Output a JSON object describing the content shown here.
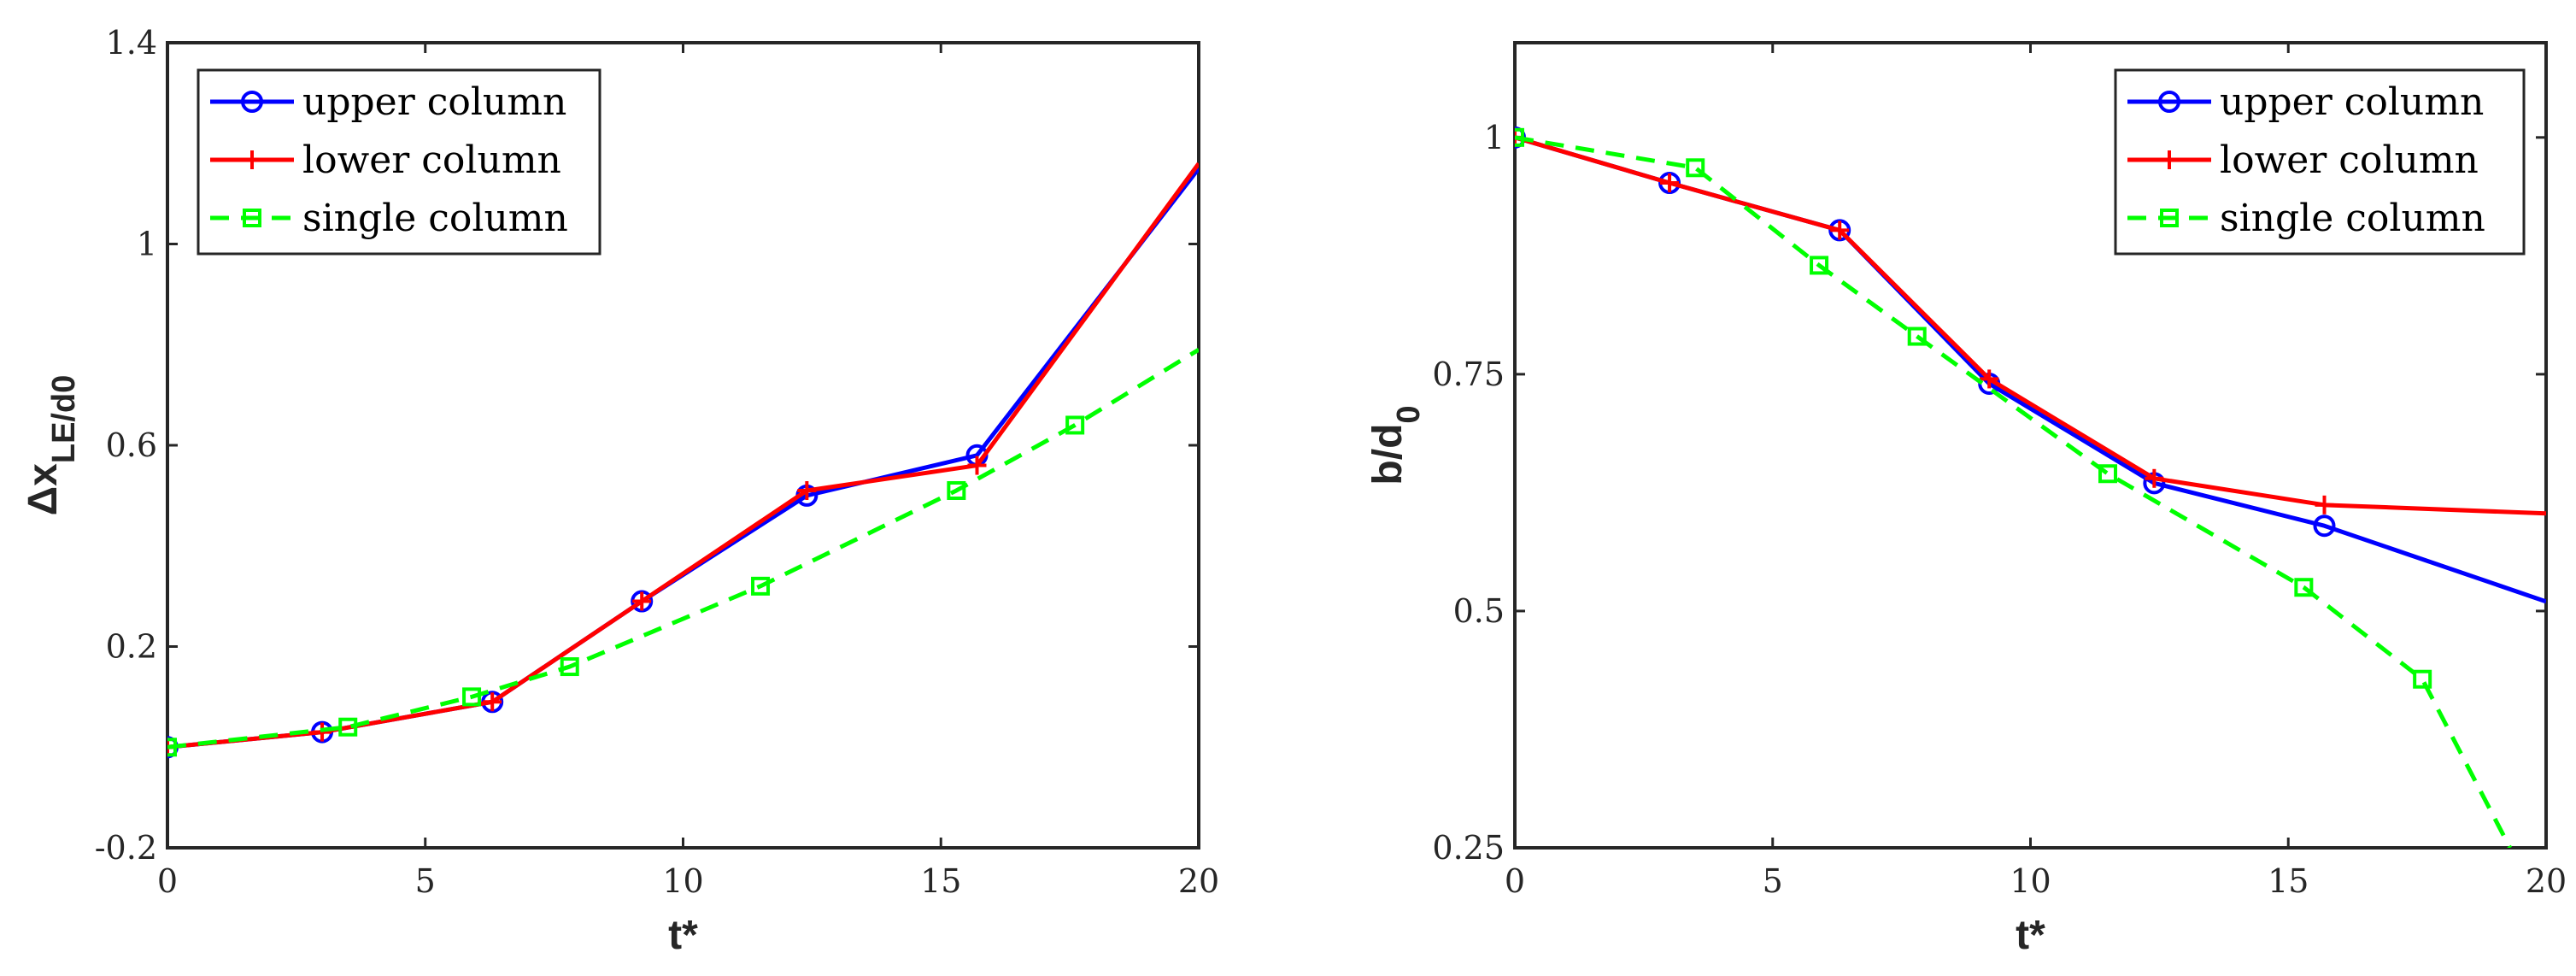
{
  "chart_data": [
    {
      "type": "line",
      "xlabel": "t*",
      "ylabel": "Δx_LE/d_0",
      "xlim": [
        0,
        20
      ],
      "ylim": [
        -0.2,
        1.4
      ],
      "xticks": [
        "0",
        "5",
        "10",
        "15",
        "20"
      ],
      "yticks": [
        "-0.2",
        "0.2",
        "0.6",
        "1",
        "1.4"
      ],
      "legend": "top-left",
      "series": [
        {
          "name": "upper column",
          "color": "#0000ff",
          "marker": "circle",
          "dash": "solid",
          "x": [
            0,
            3.0,
            6.3,
            9.2,
            12.4,
            15.7,
            20.0
          ],
          "y": [
            0.0,
            0.03,
            0.09,
            0.29,
            0.5,
            0.58,
            1.15
          ]
        },
        {
          "name": "lower column",
          "color": "#ff0000",
          "marker": "plus",
          "dash": "solid",
          "x": [
            0,
            3.0,
            6.3,
            9.2,
            12.4,
            15.7,
            20.0
          ],
          "y": [
            0.0,
            0.03,
            0.09,
            0.29,
            0.51,
            0.56,
            1.16
          ]
        },
        {
          "name": "single column",
          "color": "#00ff00",
          "marker": "square",
          "dash": "dashed",
          "x": [
            0,
            3.5,
            5.9,
            7.8,
            11.5,
            15.3,
            17.6,
            20.0
          ],
          "y": [
            0.0,
            0.04,
            0.1,
            0.16,
            0.32,
            0.51,
            0.64,
            0.79
          ]
        }
      ]
    },
    {
      "type": "line",
      "xlabel": "t*",
      "ylabel": "b/d_0",
      "xlim": [
        0,
        20
      ],
      "ylim": [
        0.25,
        1.1
      ],
      "xticks": [
        "0",
        "5",
        "10",
        "15",
        "20"
      ],
      "yticks": [
        "0.25",
        "0.5",
        "0.75",
        "1"
      ],
      "legend": "top-right",
      "series": [
        {
          "name": "upper column",
          "color": "#0000ff",
          "marker": "circle",
          "dash": "solid",
          "x": [
            0,
            3.0,
            6.3,
            9.2,
            12.4,
            15.7,
            20.0
          ],
          "y": [
            1.0,
            0.952,
            0.902,
            0.74,
            0.635,
            0.59,
            0.51
          ]
        },
        {
          "name": "lower column",
          "color": "#ff0000",
          "marker": "plus",
          "dash": "solid",
          "x": [
            0,
            3.0,
            6.3,
            9.2,
            12.4,
            15.7,
            20.0
          ],
          "y": [
            1.0,
            0.952,
            0.902,
            0.745,
            0.64,
            0.612,
            0.603
          ]
        },
        {
          "name": "single column",
          "color": "#00ff00",
          "marker": "square",
          "dash": "dashed",
          "x": [
            0,
            3.5,
            5.9,
            7.8,
            11.5,
            15.3,
            17.6,
            19.3
          ],
          "y": [
            1.0,
            0.968,
            0.865,
            0.79,
            0.645,
            0.525,
            0.428,
            0.25
          ]
        }
      ]
    }
  ]
}
